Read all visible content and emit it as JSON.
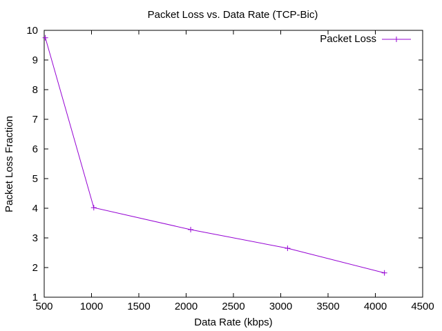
{
  "chart_data": {
    "type": "line",
    "title": "Packet Loss vs. Data Rate (TCP-Bic)",
    "xlabel": "Data Rate (kbps)",
    "ylabel": "Packet Loss Fraction",
    "xlim": [
      500,
      4500
    ],
    "ylim": [
      1,
      10
    ],
    "xticks": [
      500,
      1000,
      1500,
      2000,
      2500,
      3000,
      3500,
      4000,
      4500
    ],
    "yticks": [
      1,
      2,
      3,
      4,
      5,
      6,
      7,
      8,
      9,
      10
    ],
    "grid": false,
    "legend_position": "top-right",
    "series": [
      {
        "name": "Packet Loss",
        "color": "#9400d3",
        "marker": "plus",
        "x": [
          512,
          1024,
          2048,
          3072,
          4096
        ],
        "y": [
          9.75,
          4.02,
          3.28,
          2.65,
          1.82
        ]
      }
    ]
  }
}
